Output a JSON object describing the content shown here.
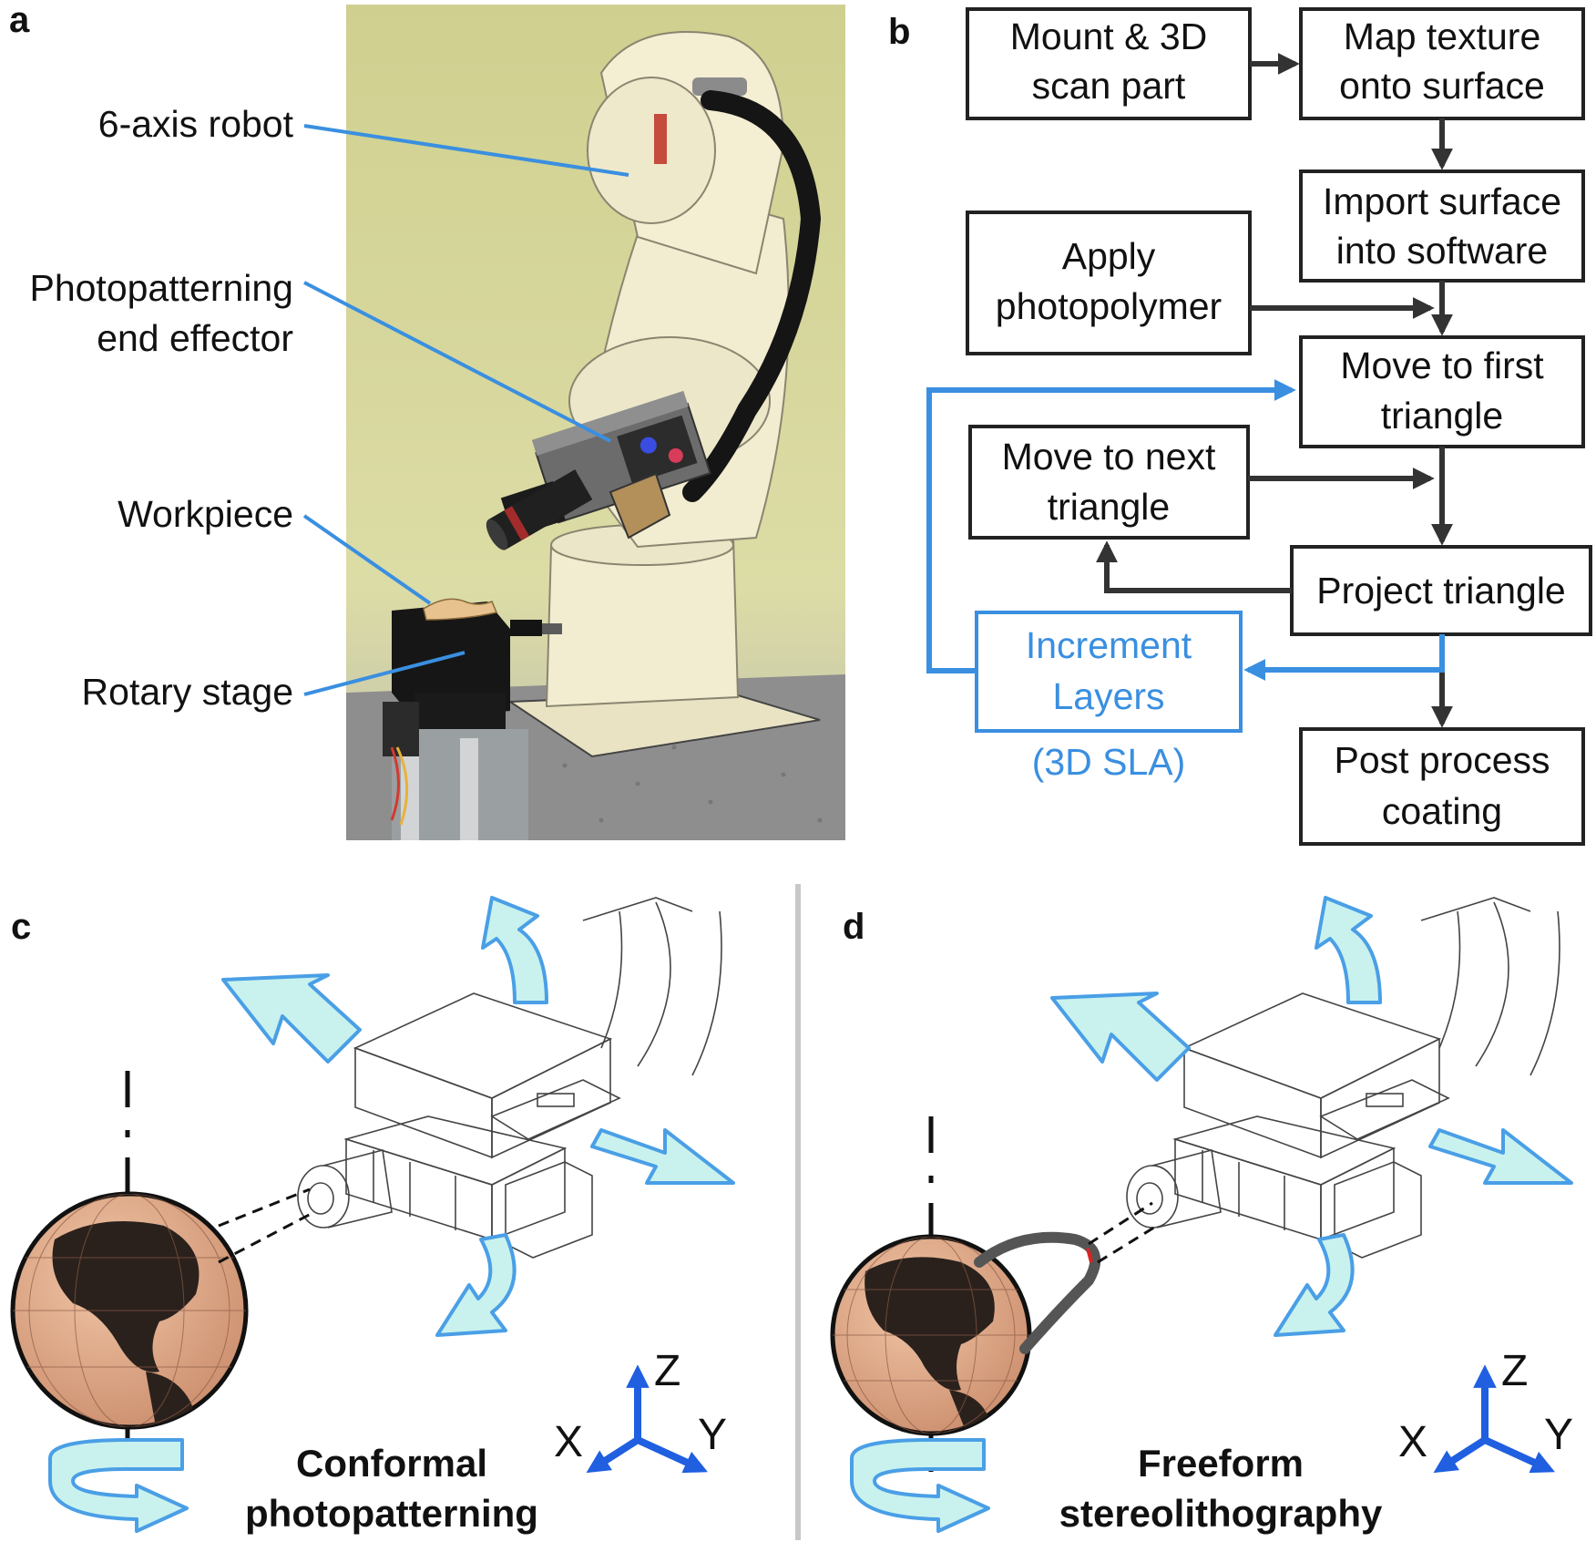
{
  "panels": {
    "a": "a",
    "b": "b",
    "c": "c",
    "d": "d"
  },
  "panel_a": {
    "labels": [
      "6-axis robot",
      "Photopatterning",
      "end effector",
      "Workpiece",
      "Rotary stage"
    ]
  },
  "panel_b": {
    "mount_1": "Mount & 3D",
    "mount_2": "scan part",
    "map_1": "Map texture",
    "map_2": "onto surface",
    "import_1": "Import surface",
    "import_2": "into software",
    "apply_1": "Apply",
    "apply_2": "photopolymer",
    "first_1": "Move to first",
    "first_2": "triangle",
    "next_1": "Move to next",
    "next_2": "triangle",
    "project": "Project triangle",
    "incr_1": "Increment",
    "incr_2": "Layers",
    "incr_3": "(3D SLA)",
    "post_1": "Post process",
    "post_2": "coating"
  },
  "panel_c": {
    "caption_1": "Conformal",
    "caption_2": "photopatterning",
    "axes": {
      "x": "X",
      "y": "Y",
      "z": "Z"
    }
  },
  "panel_d": {
    "caption_1": "Freeform",
    "caption_2": "stereolithography",
    "axes": {
      "x": "X",
      "y": "Y",
      "z": "Z"
    }
  },
  "colors": {
    "accent_blue": "#3a8fe0",
    "arrow_fill": "#c9f2ee",
    "photo_wall": "#d8d79a",
    "robot_body": "#f2ecd0",
    "globe_ocean": "#e0b091",
    "globe_land": "#2a211c"
  },
  "icons": [
    "robot-photo",
    "globe-icon",
    "rotation-arrow-icon",
    "axis-triad-icon",
    "end-effector-drawing"
  ]
}
